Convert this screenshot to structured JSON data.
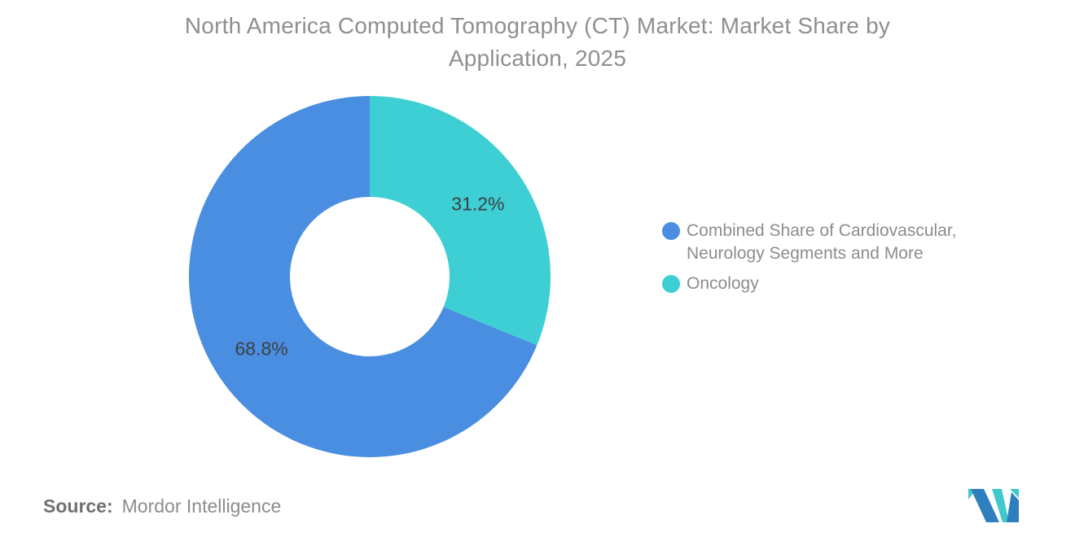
{
  "header": {
    "title_lines": [
      "North America Computed Tomography (CT) Market: Market Share by",
      "Application, 2025"
    ]
  },
  "chart_data": {
    "type": "pie",
    "subtype": "donut",
    "title": "North America Computed Tomography (CT) Market: Market Share by Application, 2025",
    "rotation_deg": 112.32,
    "inner_radius_ratio": 0.44,
    "legend_position": "right",
    "series": [
      {
        "name": "Combined Share of Cardiovascular, Neurology Segments and More",
        "value": 68.8,
        "label": "68.8%",
        "color": "#4A8EE2"
      },
      {
        "name": "Oncology",
        "value": 31.2,
        "label": "31.2%",
        "color": "#3DCFD3"
      }
    ]
  },
  "footer": {
    "source_label": "Source:",
    "source_value": "Mordor Intelligence"
  },
  "logo": {
    "name": "mordor-intelligence-logo",
    "teal": "#41C8CB",
    "blue": "#2E7FBE"
  }
}
